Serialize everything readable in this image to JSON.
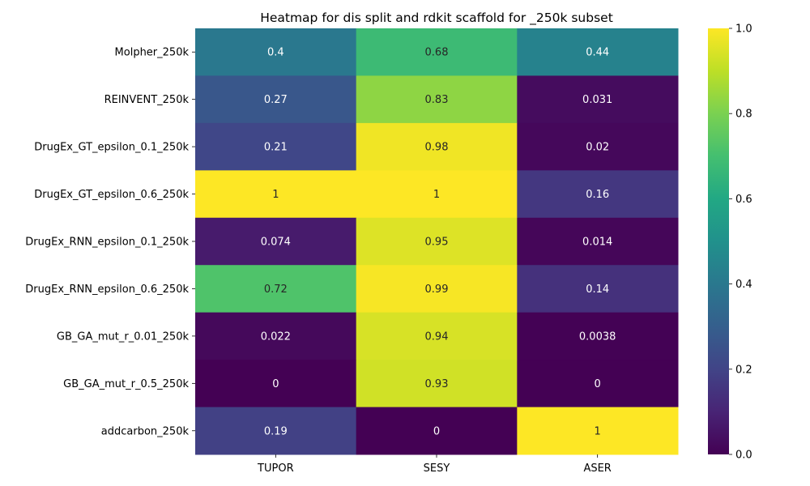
{
  "chart_data": {
    "type": "heatmap",
    "title": "Heatmap for dis split and rdkit scaffold for _250k subset",
    "xlabel": "",
    "ylabel": "",
    "columns": [
      "TUPOR",
      "SESY",
      "ASER"
    ],
    "rows": [
      "Molpher_250k",
      "REINVENT_250k",
      "DrugEx_GT_epsilon_0.1_250k",
      "DrugEx_GT_epsilon_0.6_250k",
      "DrugEx_RNN_epsilon_0.1_250k",
      "DrugEx_RNN_epsilon_0.6_250k",
      "GB_GA_mut_r_0.01_250k",
      "GB_GA_mut_r_0.5_250k",
      "addcarbon_250k"
    ],
    "values": [
      [
        0.4,
        0.68,
        0.44
      ],
      [
        0.27,
        0.83,
        0.031
      ],
      [
        0.21,
        0.98,
        0.02
      ],
      [
        1,
        1,
        0.16
      ],
      [
        0.074,
        0.95,
        0.014
      ],
      [
        0.72,
        0.99,
        0.14
      ],
      [
        0.022,
        0.94,
        0.0038
      ],
      [
        0,
        0.93,
        0
      ],
      [
        0.19,
        0,
        1
      ]
    ],
    "value_labels": [
      [
        "0.4",
        "0.68",
        "0.44"
      ],
      [
        "0.27",
        "0.83",
        "0.031"
      ],
      [
        "0.21",
        "0.98",
        "0.02"
      ],
      [
        "1",
        "1",
        "0.16"
      ],
      [
        "0.074",
        "0.95",
        "0.014"
      ],
      [
        "0.72",
        "0.99",
        "0.14"
      ],
      [
        "0.022",
        "0.94",
        "0.0038"
      ],
      [
        "0",
        "0.93",
        "0"
      ],
      [
        "0.19",
        "0",
        "1"
      ]
    ],
    "colormap": "viridis",
    "colorbar": {
      "range": [
        0,
        1
      ],
      "ticks": [
        "0.0",
        "0.2",
        "0.4",
        "0.6",
        "0.8",
        "1.0"
      ]
    },
    "grid": false,
    "legend": "colorbar-right"
  }
}
